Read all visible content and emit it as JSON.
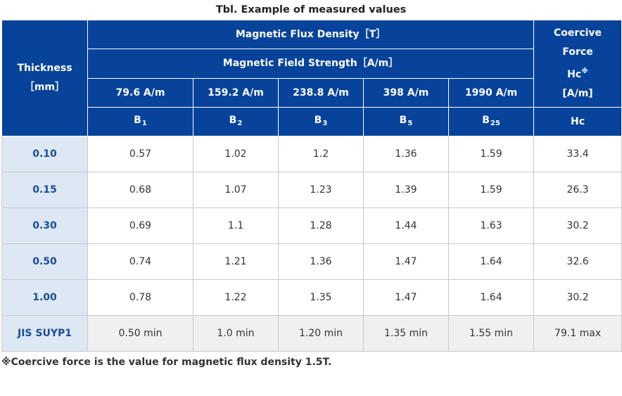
{
  "caption": "Tbl.  Example of measured values",
  "header": {
    "thickness": "Thickness",
    "thickness_unit": "［mm］",
    "flux_density": "Magnetic Flux Density［T］",
    "field_strength": "Magnetic Field Strength［A/m］",
    "coercive_1": "Coercive",
    "coercive_2": "Force",
    "coercive_hc": "Hc",
    "coercive_mark": "※",
    "coercive_unit": "[A/m]",
    "fields": [
      "79.6 A/m",
      "159.2 A/m",
      "238.8 A/m",
      "398 A/m",
      "1990 A/m"
    ],
    "b_letter": "B",
    "b_subs": [
      "1",
      "2",
      "3",
      "5",
      "25"
    ],
    "hc_label": "Hc"
  },
  "rows": [
    {
      "thickness": "0.10",
      "values": [
        "0.57",
        "1.02",
        "1.2",
        "1.36",
        "1.59"
      ],
      "hc": "33.4"
    },
    {
      "thickness": "0.15",
      "values": [
        "0.68",
        "1.07",
        "1.23",
        "1.39",
        "1.59"
      ],
      "hc": "26.3"
    },
    {
      "thickness": "0.30",
      "values": [
        "0.69",
        "1.1",
        "1.28",
        "1.44",
        "1.63"
      ],
      "hc": "30.2"
    },
    {
      "thickness": "0.50",
      "values": [
        "0.74",
        "1.21",
        "1.36",
        "1.47",
        "1.64"
      ],
      "hc": "32.6"
    },
    {
      "thickness": "1.00",
      "values": [
        "0.78",
        "1.22",
        "1.35",
        "1.47",
        "1.64"
      ],
      "hc": "30.2"
    }
  ],
  "jis": {
    "label": "JIS SUYP1",
    "values": [
      "0.50 min",
      "1.0 min",
      "1.20 min",
      "1.35 min",
      "1.55 min"
    ],
    "hc": "79.1 max"
  },
  "footnote": "※Coercive force is the value for magnetic flux density 1.5T."
}
